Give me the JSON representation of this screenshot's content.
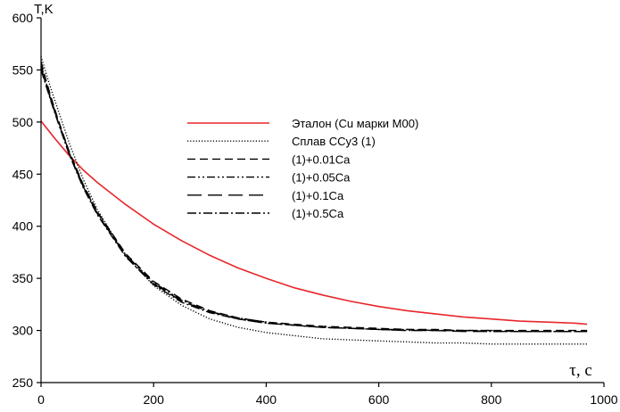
{
  "chart_data": {
    "type": "line",
    "title": "",
    "xlabel": "τ, с",
    "ylabel": "T,K",
    "xlim": [
      0,
      1000
    ],
    "ylim": [
      250,
      600
    ],
    "xticks": [
      0,
      200,
      400,
      600,
      800,
      1000
    ],
    "yticks": [
      250,
      300,
      350,
      400,
      450,
      500,
      550,
      600
    ],
    "grid": false,
    "legend_position": "center-right",
    "series": [
      {
        "name": "Эталон (Cu марки М00)",
        "color": "#e8262a",
        "dash": "solid",
        "x": [
          0,
          25,
          50,
          75,
          100,
          150,
          200,
          250,
          300,
          350,
          400,
          450,
          500,
          550,
          600,
          650,
          700,
          750,
          800,
          850,
          900,
          950,
          970
        ],
        "y": [
          501,
          484,
          468,
          454,
          442,
          421,
          402,
          386,
          372,
          360,
          350,
          341,
          334,
          328,
          323,
          319,
          316,
          313,
          311,
          309,
          308,
          307,
          306
        ]
      },
      {
        "name": "Сплав ССу3 (1)",
        "color": "#000000",
        "dash": "dotted",
        "x": [
          0,
          10,
          20,
          30,
          50,
          75,
          100,
          150,
          200,
          250,
          300,
          350,
          400,
          450,
          500,
          550,
          600,
          650,
          700,
          750,
          800,
          850,
          900,
          950,
          970
        ],
        "y": [
          563,
          545,
          528,
          512,
          480,
          445,
          416,
          372,
          343,
          324,
          311,
          303,
          298,
          295,
          292,
          291,
          290,
          289,
          288,
          288,
          287,
          287,
          287,
          287,
          287
        ]
      },
      {
        "name": "(1)+0.01Ca",
        "color": "#000000",
        "dash": "dash",
        "x": [
          0,
          10,
          20,
          30,
          50,
          75,
          100,
          150,
          200,
          250,
          300,
          350,
          400,
          450,
          500,
          550,
          600,
          650,
          700,
          750,
          800,
          850,
          900,
          950,
          970
        ],
        "y": [
          558,
          538,
          520,
          503,
          472,
          440,
          414,
          374,
          347,
          330,
          319,
          312,
          308,
          306,
          304,
          303,
          302,
          301,
          301,
          300,
          300,
          300,
          300,
          300,
          300
        ]
      },
      {
        "name": "(1)+0.05Ca",
        "color": "#000000",
        "dash": "dashdotdot",
        "x": [
          0,
          10,
          20,
          30,
          50,
          75,
          100,
          150,
          200,
          250,
          300,
          350,
          400,
          450,
          500,
          550,
          600,
          650,
          700,
          750,
          800,
          850,
          900,
          950,
          970
        ],
        "y": [
          555,
          536,
          518,
          502,
          471,
          439,
          413,
          373,
          346,
          329,
          318,
          312,
          308,
          305,
          303,
          302,
          301,
          301,
          300,
          300,
          300,
          299,
          299,
          299,
          299
        ]
      },
      {
        "name": "(1)+0.1Ca",
        "color": "#000000",
        "dash": "longdash",
        "x": [
          0,
          10,
          20,
          30,
          50,
          75,
          100,
          150,
          200,
          250,
          300,
          350,
          400,
          450,
          500,
          550,
          600,
          650,
          700,
          750,
          800,
          850,
          900,
          950,
          970
        ],
        "y": [
          552,
          534,
          517,
          501,
          470,
          438,
          412,
          372,
          345,
          328,
          318,
          311,
          307,
          305,
          303,
          302,
          301,
          300,
          300,
          299,
          299,
          299,
          299,
          299,
          299
        ]
      },
      {
        "name": "(1)+0.5Ca",
        "color": "#000000",
        "dash": "dashdot",
        "x": [
          0,
          10,
          20,
          30,
          50,
          75,
          100,
          150,
          200,
          250,
          300,
          350,
          400,
          450,
          500,
          550,
          600,
          650,
          700,
          750,
          800,
          850,
          900,
          950,
          970
        ],
        "y": [
          550,
          533,
          516,
          500,
          469,
          437,
          411,
          371,
          344,
          327,
          317,
          311,
          307,
          305,
          303,
          302,
          301,
          300,
          300,
          300,
          299,
          299,
          299,
          299,
          299
        ]
      }
    ]
  }
}
